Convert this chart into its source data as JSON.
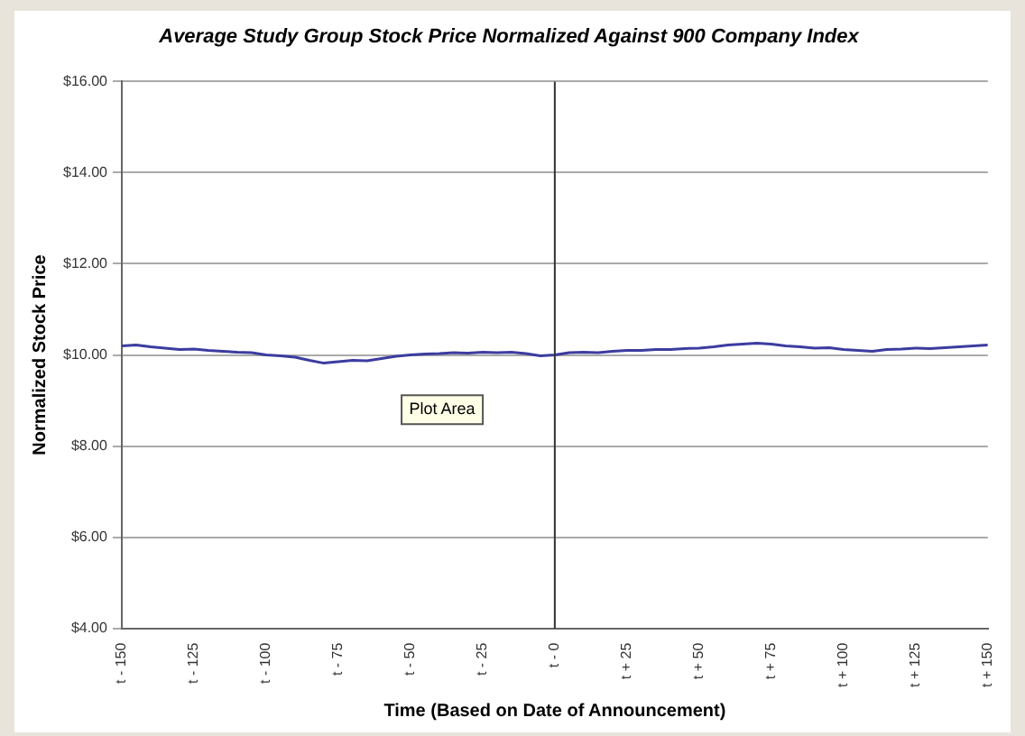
{
  "chart_data": {
    "type": "line",
    "title": "Average Study Group Stock Price Normalized Against 900 Company Index",
    "xlabel": "Time (Based on Date of Announcement)",
    "ylabel": "Normalized Stock Price",
    "x": [
      -150,
      -145,
      -140,
      -135,
      -130,
      -125,
      -120,
      -115,
      -110,
      -105,
      -100,
      -95,
      -90,
      -85,
      -80,
      -75,
      -70,
      -65,
      -60,
      -55,
      -50,
      -45,
      -40,
      -35,
      -30,
      -25,
      -20,
      -15,
      -10,
      -5,
      0,
      5,
      10,
      15,
      20,
      25,
      30,
      35,
      40,
      45,
      50,
      55,
      60,
      65,
      70,
      75,
      80,
      85,
      90,
      95,
      100,
      105,
      110,
      115,
      120,
      125,
      130,
      135,
      140,
      145,
      150
    ],
    "series": [
      {
        "color": "#3c3ca0",
        "values": [
          10.2,
          10.22,
          10.18,
          10.15,
          10.12,
          10.13,
          10.1,
          10.08,
          10.06,
          10.05,
          10.0,
          9.98,
          9.95,
          9.88,
          9.82,
          9.85,
          9.88,
          9.87,
          9.92,
          9.97,
          10.0,
          10.02,
          10.03,
          10.05,
          10.04,
          10.06,
          10.05,
          10.06,
          10.03,
          9.98,
          10.0,
          10.05,
          10.06,
          10.05,
          10.08,
          10.1,
          10.1,
          10.12,
          10.12,
          10.14,
          10.15,
          10.18,
          10.22,
          10.24,
          10.26,
          10.24,
          10.2,
          10.18,
          10.15,
          10.16,
          10.12,
          10.1,
          10.08,
          10.12,
          10.13,
          10.15,
          10.14,
          10.16,
          10.18,
          10.2,
          10.22
        ]
      }
    ],
    "xlim": [
      -150,
      150
    ],
    "xticks": [
      {
        "value": -150,
        "label": "t - 150"
      },
      {
        "value": -125,
        "label": "t - 125"
      },
      {
        "value": -100,
        "label": "t - 100"
      },
      {
        "value": -75,
        "label": "t - 75"
      },
      {
        "value": -50,
        "label": "t - 50"
      },
      {
        "value": -25,
        "label": "t - 25"
      },
      {
        "value": 0,
        "label": "t - 0"
      },
      {
        "value": 25,
        "label": "t + 25"
      },
      {
        "value": 50,
        "label": "t + 50"
      },
      {
        "value": 75,
        "label": "t + 75"
      },
      {
        "value": 100,
        "label": "t + 100"
      },
      {
        "value": 125,
        "label": "t + 125"
      },
      {
        "value": 150,
        "label": "t + 150"
      }
    ],
    "ylim": [
      4,
      16
    ],
    "yticks": [
      {
        "value": 4,
        "label": "$4.00"
      },
      {
        "value": 6,
        "label": "$6.00"
      },
      {
        "value": 8,
        "label": "$8.00"
      },
      {
        "value": 10,
        "label": "$10.00"
      },
      {
        "value": 12,
        "label": "$12.00"
      },
      {
        "value": 14,
        "label": "$14.00"
      },
      {
        "value": 16,
        "label": "$16.00"
      }
    ],
    "ref_lines": [
      {
        "axis": "x",
        "value": 0,
        "color": "#333333"
      }
    ],
    "annotations": [
      "Plot Area"
    ],
    "grid": "y",
    "legend": false,
    "marker": "none",
    "line_style": "solid"
  }
}
